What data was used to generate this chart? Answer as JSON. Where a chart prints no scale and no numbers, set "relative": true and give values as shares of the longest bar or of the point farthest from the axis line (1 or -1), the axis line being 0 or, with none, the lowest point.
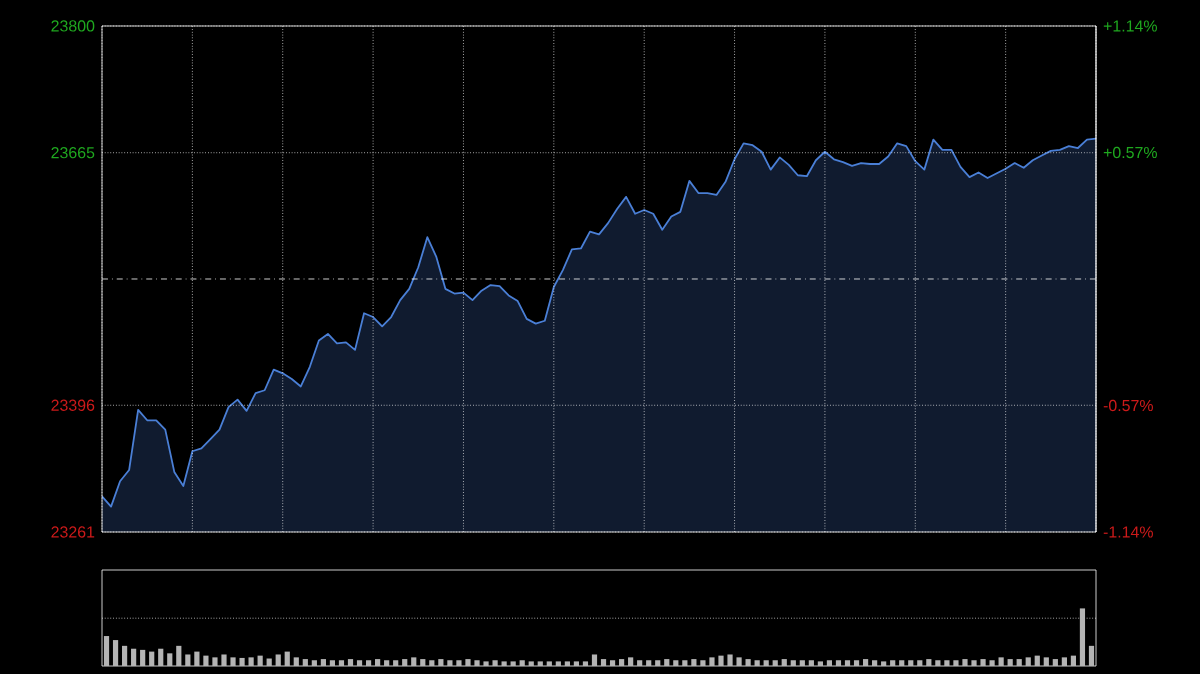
{
  "chart_data": [
    {
      "type": "area",
      "color": "#4a7fd6",
      "categories": [
        null,
        null,
        null,
        null,
        null,
        null,
        null,
        null,
        null,
        null,
        null,
        null,
        null,
        null,
        null,
        null,
        null,
        null,
        null,
        null,
        null,
        null,
        null,
        null,
        null,
        null,
        null,
        null,
        null,
        null,
        null,
        null,
        null,
        null,
        null,
        null,
        null,
        null,
        null,
        null,
        null,
        null,
        null,
        null,
        null,
        null,
        null,
        null,
        null,
        null,
        null,
        null,
        null,
        null,
        null,
        null,
        null,
        null,
        null,
        null,
        null,
        null,
        null,
        null,
        null,
        null,
        null,
        null,
        null,
        null,
        null,
        null,
        null,
        null,
        null,
        null,
        null,
        null,
        null,
        null,
        null,
        null,
        null,
        null,
        null,
        null,
        null,
        null,
        null,
        null,
        null,
        null,
        null,
        null,
        null,
        null,
        null,
        null,
        null,
        null,
        null,
        null,
        null,
        null,
        null,
        null,
        null,
        null,
        null,
        null,
        null
      ],
      "values": [
        23299,
        23288,
        23315,
        23327,
        23391,
        23380,
        23380,
        23370,
        23325,
        23310,
        23347,
        23350,
        23360,
        23370,
        23394,
        23402,
        23390,
        23409,
        23412,
        23434,
        23430,
        23424,
        23416,
        23437,
        23465,
        23472,
        23462,
        23463,
        23455,
        23494,
        23490,
        23480,
        23490,
        23508,
        23520,
        23543,
        23575,
        23554,
        23520,
        23515,
        23516,
        23508,
        23518,
        23524,
        23523,
        23513,
        23507,
        23488,
        23483,
        23486,
        23522,
        23540,
        23562,
        23563,
        23581,
        23578,
        23590,
        23605,
        23618,
        23600,
        23604,
        23600,
        23583,
        23597,
        23602,
        23635,
        23622,
        23622,
        23620,
        23634,
        23658,
        23675,
        23673,
        23666,
        23647,
        23660,
        23652,
        23641,
        23640,
        23657,
        23666,
        23658,
        23655,
        23651,
        23654,
        23653,
        23653,
        23661,
        23675,
        23672,
        23656,
        23647,
        23679,
        23668,
        23668,
        23650,
        23639,
        23644,
        23638,
        23643,
        23648,
        23654,
        23649,
        23657,
        23662,
        23667,
        23668,
        23672,
        23670,
        23679,
        23680
      ],
      "ylim": [
        23261,
        23800
      ],
      "yticks": [
        23261,
        23396,
        23665,
        23800
      ],
      "y2lim": [
        -1.14,
        1.14
      ],
      "y2ticks": [
        {
          "value": -1.14,
          "label": "-1.14%"
        },
        {
          "value": -0.57,
          "label": "-0.57%"
        },
        {
          "value": 0.57,
          "label": "+0.57%"
        },
        {
          "value": 1.14,
          "label": "+1.14%"
        }
      ],
      "ref_lines": [
        {
          "axis": "y2",
          "value": 0,
          "line_style": "dashdot"
        }
      ],
      "grid": true,
      "tick_labels": "y"
    },
    {
      "type": "bar",
      "relative": true,
      "color": "#b4b4b4",
      "ref_lines": [
        {
          "axis": "y",
          "value": 0.83,
          "line_style": "dotted"
        }
      ],
      "categories": [
        null,
        null,
        null,
        null,
        null,
        null,
        null,
        null,
        null,
        null,
        null,
        null,
        null,
        null,
        null,
        null,
        null,
        null,
        null,
        null,
        null,
        null,
        null,
        null,
        null,
        null,
        null,
        null,
        null,
        null,
        null,
        null,
        null,
        null,
        null,
        null,
        null,
        null,
        null,
        null,
        null,
        null,
        null,
        null,
        null,
        null,
        null,
        null,
        null,
        null,
        null,
        null,
        null,
        null,
        null,
        null,
        null,
        null,
        null,
        null,
        null,
        null,
        null,
        null,
        null,
        null,
        null,
        null,
        null,
        null,
        null,
        null,
        null,
        null,
        null,
        null,
        null,
        null,
        null,
        null,
        null,
        null,
        null,
        null,
        null,
        null,
        null,
        null,
        null,
        null,
        null,
        null,
        null,
        null,
        null,
        null,
        null,
        null,
        null,
        null,
        null,
        null,
        null,
        null,
        null,
        null,
        null,
        null,
        null,
        null
      ],
      "values": [
        0.52,
        0.45,
        0.35,
        0.3,
        0.28,
        0.25,
        0.3,
        0.22,
        0.35,
        0.2,
        0.25,
        0.18,
        0.15,
        0.2,
        0.15,
        0.14,
        0.15,
        0.18,
        0.13,
        0.2,
        0.25,
        0.15,
        0.12,
        0.1,
        0.12,
        0.1,
        0.1,
        0.12,
        0.1,
        0.1,
        0.12,
        0.1,
        0.1,
        0.12,
        0.15,
        0.12,
        0.1,
        0.12,
        0.1,
        0.1,
        0.12,
        0.1,
        0.08,
        0.1,
        0.08,
        0.08,
        0.1,
        0.08,
        0.08,
        0.08,
        0.08,
        0.08,
        0.08,
        0.08,
        0.2,
        0.12,
        0.1,
        0.12,
        0.15,
        0.1,
        0.1,
        0.1,
        0.12,
        0.1,
        0.1,
        0.12,
        0.1,
        0.15,
        0.18,
        0.2,
        0.15,
        0.12,
        0.1,
        0.1,
        0.1,
        0.12,
        0.1,
        0.1,
        0.1,
        0.08,
        0.1,
        0.1,
        0.1,
        0.1,
        0.12,
        0.1,
        0.08,
        0.1,
        0.1,
        0.1,
        0.1,
        0.12,
        0.1,
        0.1,
        0.1,
        0.12,
        0.1,
        0.12,
        0.1,
        0.15,
        0.12,
        0.12,
        0.15,
        0.18,
        0.15,
        0.12,
        0.15,
        0.18,
        1.0,
        0.35
      ]
    }
  ]
}
